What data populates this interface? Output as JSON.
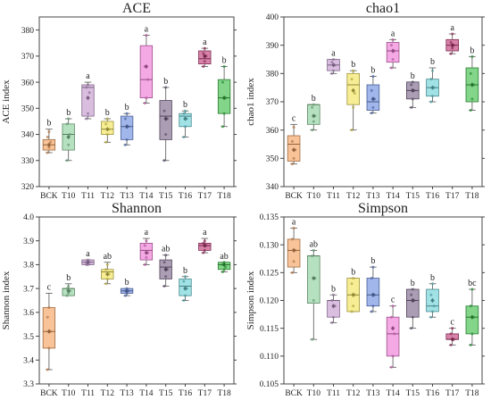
{
  "chart_data": [
    {
      "type": "box",
      "title": "ACE",
      "ylabel": "ACE index",
      "ylim": [
        320,
        385
      ],
      "yticks": [
        320,
        330,
        340,
        350,
        360,
        370,
        380
      ],
      "categories": [
        "BCK",
        "T10",
        "T11",
        "T12",
        "T13",
        "T14",
        "T15",
        "T16",
        "T17",
        "T18"
      ],
      "colors": [
        "#f4a261",
        "#8fd19e",
        "#c49bd0",
        "#f2e35a",
        "#6f8fe0",
        "#f07ad6",
        "#7e6a8c",
        "#6fd3d8",
        "#c2407a",
        "#3fbf4a"
      ],
      "boxes": [
        {
          "min": 333,
          "q1": 334,
          "median": 336,
          "mean": 336,
          "q3": 338,
          "max": 342,
          "letter": "b",
          "points": [
            333,
            335,
            337,
            339,
            341
          ]
        },
        {
          "min": 330,
          "q1": 334,
          "median": 340,
          "mean": 339,
          "q3": 344,
          "max": 346,
          "letter": "b",
          "points": [
            330,
            336,
            340,
            344,
            346
          ]
        },
        {
          "min": 346,
          "q1": 347,
          "median": 358,
          "mean": 354,
          "q3": 359,
          "max": 360,
          "letter": "a",
          "points": [
            346,
            348,
            356,
            358,
            359
          ]
        },
        {
          "min": 337,
          "q1": 340,
          "median": 342,
          "mean": 342,
          "q3": 345,
          "max": 346,
          "letter": "b",
          "points": [
            337,
            340,
            342,
            344,
            346
          ]
        },
        {
          "min": 336,
          "q1": 338,
          "median": 343,
          "mean": 343,
          "q3": 347,
          "max": 348,
          "letter": "b",
          "points": [
            336,
            338,
            343,
            346,
            348
          ]
        },
        {
          "min": 352,
          "q1": 354,
          "median": 361,
          "mean": 366,
          "q3": 374,
          "max": 378,
          "letter": "a",
          "points": [
            352,
            354,
            361,
            366,
            378
          ]
        },
        {
          "min": 330,
          "q1": 338,
          "median": 347,
          "mean": 346,
          "q3": 353,
          "max": 358,
          "letter": "b",
          "points": [
            330,
            340,
            346,
            349,
            358
          ]
        },
        {
          "min": 339,
          "q1": 343,
          "median": 347,
          "mean": 346,
          "q3": 348,
          "max": 349,
          "letter": "b",
          "points": [
            339,
            343,
            346,
            348,
            349
          ]
        },
        {
          "min": 366,
          "q1": 367,
          "median": 369,
          "mean": 370,
          "q3": 372,
          "max": 373,
          "letter": "a",
          "points": [
            366,
            368,
            370,
            371,
            373
          ]
        },
        {
          "min": 343,
          "q1": 348,
          "median": 354,
          "mean": 354,
          "q3": 361,
          "max": 366,
          "letter": "b",
          "points": [
            343,
            348,
            354,
            360,
            366
          ]
        }
      ]
    },
    {
      "type": "box",
      "title": "chao1",
      "ylabel": "chao1 index",
      "ylim": [
        340,
        400
      ],
      "yticks": [
        340,
        350,
        360,
        370,
        380,
        390,
        400
      ],
      "categories": [
        "BCK",
        "T10",
        "T11",
        "T12",
        "T13",
        "T14",
        "T15",
        "T16",
        "T17",
        "T18"
      ],
      "colors": [
        "#f4a261",
        "#8fd19e",
        "#c49bd0",
        "#f2e35a",
        "#6f8fe0",
        "#f07ad6",
        "#7e6a8c",
        "#6fd3d8",
        "#c2407a",
        "#3fbf4a"
      ],
      "boxes": [
        {
          "min": 348,
          "q1": 349,
          "median": 355,
          "mean": 353,
          "q3": 358,
          "max": 362,
          "letter": "c",
          "points": [
            348,
            350,
            353,
            356,
            361
          ]
        },
        {
          "min": 360,
          "q1": 362,
          "median": 369,
          "mean": 365,
          "q3": 369,
          "max": 369,
          "letter": "b",
          "points": [
            360,
            363,
            365,
            368,
            369
          ]
        },
        {
          "min": 380,
          "q1": 381,
          "median": 383,
          "mean": 383,
          "q3": 385,
          "max": 385,
          "letter": "a",
          "points": [
            380,
            381,
            383,
            384,
            385
          ]
        },
        {
          "min": 360,
          "q1": 369,
          "median": 376,
          "mean": 374,
          "q3": 380,
          "max": 381,
          "letter": "b",
          "points": [
            360,
            368,
            373,
            378,
            381
          ]
        },
        {
          "min": 366,
          "q1": 367,
          "median": 370,
          "mean": 371,
          "q3": 376,
          "max": 379,
          "letter": "b",
          "points": [
            366,
            368,
            371,
            374,
            379
          ]
        },
        {
          "min": 382,
          "q1": 384,
          "median": 388,
          "mean": 388,
          "q3": 391,
          "max": 392,
          "letter": "a",
          "points": [
            382,
            385,
            388,
            390,
            392
          ]
        },
        {
          "min": 368,
          "q1": 371,
          "median": 374,
          "mean": 374,
          "q3": 377,
          "max": 377,
          "letter": "b",
          "points": [
            368,
            371,
            374,
            376,
            377
          ]
        },
        {
          "min": 370,
          "q1": 372,
          "median": 375,
          "mean": 375,
          "q3": 378,
          "max": 382,
          "letter": "b",
          "points": [
            370,
            372,
            375,
            378,
            381
          ]
        },
        {
          "min": 387,
          "q1": 388,
          "median": 390,
          "mean": 390,
          "q3": 392,
          "max": 394,
          "letter": "a",
          "points": [
            387,
            389,
            390,
            391,
            394
          ]
        },
        {
          "min": 367,
          "q1": 370,
          "median": 376,
          "mean": 376,
          "q3": 382,
          "max": 386,
          "letter": "b",
          "points": [
            367,
            371,
            376,
            380,
            386
          ]
        }
      ]
    },
    {
      "type": "box",
      "title": "Shannon",
      "ylabel": "Shannon index",
      "ylim": [
        3.3,
        4.0
      ],
      "yticks": [
        3.3,
        3.4,
        3.5,
        3.6,
        3.7,
        3.8,
        3.9,
        4.0
      ],
      "categories": [
        "BCK",
        "T10",
        "T11",
        "T12",
        "T13",
        "T14",
        "T15",
        "T16",
        "T17",
        "T18"
      ],
      "colors": [
        "#f4a261",
        "#8fd19e",
        "#c49bd0",
        "#f2e35a",
        "#6f8fe0",
        "#f07ad6",
        "#7e6a8c",
        "#6fd3d8",
        "#c2407a",
        "#3fbf4a"
      ],
      "boxes": [
        {
          "min": 3.36,
          "q1": 3.45,
          "median": 3.52,
          "mean": 3.52,
          "q3": 3.62,
          "max": 3.68,
          "letter": "c",
          "points": [
            3.36,
            3.45,
            3.52,
            3.58,
            3.62
          ]
        },
        {
          "min": 3.67,
          "q1": 3.67,
          "median": 3.7,
          "mean": 3.69,
          "q3": 3.7,
          "max": 3.72,
          "letter": "b",
          "points": [
            3.67,
            3.68,
            3.69,
            3.7,
            3.71
          ]
        },
        {
          "min": 3.8,
          "q1": 3.8,
          "median": 3.81,
          "mean": 3.81,
          "q3": 3.82,
          "max": 3.82,
          "letter": "a",
          "points": [
            3.8,
            3.8,
            3.81,
            3.81,
            3.82
          ]
        },
        {
          "min": 3.72,
          "q1": 3.74,
          "median": 3.77,
          "mean": 3.76,
          "q3": 3.78,
          "max": 3.81,
          "letter": "ab",
          "points": [
            3.72,
            3.74,
            3.76,
            3.78,
            3.8
          ]
        },
        {
          "min": 3.67,
          "q1": 3.68,
          "median": 3.69,
          "mean": 3.69,
          "q3": 3.7,
          "max": 3.7,
          "letter": "b",
          "points": [
            3.67,
            3.68,
            3.69,
            3.69,
            3.7
          ]
        },
        {
          "min": 3.8,
          "q1": 3.82,
          "median": 3.86,
          "mean": 3.85,
          "q3": 3.89,
          "max": 3.91,
          "letter": "a",
          "points": [
            3.8,
            3.83,
            3.85,
            3.88,
            3.9
          ]
        },
        {
          "min": 3.71,
          "q1": 3.74,
          "median": 3.79,
          "mean": 3.78,
          "q3": 3.82,
          "max": 3.84,
          "letter": "ab",
          "points": [
            3.71,
            3.75,
            3.78,
            3.81,
            3.84
          ]
        },
        {
          "min": 3.65,
          "q1": 3.67,
          "median": 3.71,
          "mean": 3.7,
          "q3": 3.74,
          "max": 3.75,
          "letter": "b",
          "points": [
            3.65,
            3.67,
            3.7,
            3.73,
            3.75
          ]
        },
        {
          "min": 3.85,
          "q1": 3.86,
          "median": 3.88,
          "mean": 3.88,
          "q3": 3.89,
          "max": 3.91,
          "letter": "a",
          "points": [
            3.85,
            3.86,
            3.88,
            3.89,
            3.9
          ]
        },
        {
          "min": 3.77,
          "q1": 3.78,
          "median": 3.8,
          "mean": 3.8,
          "q3": 3.81,
          "max": 3.81,
          "letter": "ab",
          "points": [
            3.77,
            3.78,
            3.79,
            3.8,
            3.81
          ]
        }
      ]
    },
    {
      "type": "box",
      "title": "Simpson",
      "ylabel": "Simpson index",
      "ylim": [
        0.105,
        0.135
      ],
      "yticks": [
        0.105,
        0.11,
        0.115,
        0.12,
        0.125,
        0.13,
        0.135
      ],
      "categories": [
        "BCK",
        "T10",
        "T11",
        "T12",
        "T13",
        "T14",
        "T15",
        "T16",
        "T17",
        "T18"
      ],
      "colors": [
        "#f4a261",
        "#8fd19e",
        "#c49bd0",
        "#f2e35a",
        "#6f8fe0",
        "#f07ad6",
        "#7e6a8c",
        "#6fd3d8",
        "#c2407a",
        "#3fbf4a"
      ],
      "boxes": [
        {
          "min": 0.125,
          "q1": 0.126,
          "median": 0.129,
          "mean": 0.129,
          "q3": 0.131,
          "max": 0.133,
          "letter": "a",
          "points": [
            0.125,
            0.127,
            0.129,
            0.131,
            0.133
          ]
        },
        {
          "min": 0.113,
          "q1": 0.1195,
          "median": 0.128,
          "mean": 0.124,
          "q3": 0.128,
          "max": 0.129,
          "letter": "ab",
          "points": [
            0.113,
            0.12,
            0.124,
            0.128,
            0.129
          ]
        },
        {
          "min": 0.116,
          "q1": 0.117,
          "median": 0.12,
          "mean": 0.119,
          "q3": 0.12,
          "max": 0.121,
          "letter": "b",
          "points": [
            0.116,
            0.117,
            0.119,
            0.12,
            0.121
          ]
        },
        {
          "min": 0.118,
          "q1": 0.118,
          "median": 0.121,
          "mean": 0.121,
          "q3": 0.124,
          "max": 0.124,
          "letter": "b",
          "points": [
            0.118,
            0.119,
            0.121,
            0.123,
            0.124
          ]
        },
        {
          "min": 0.118,
          "q1": 0.119,
          "median": 0.121,
          "mean": 0.121,
          "q3": 0.124,
          "max": 0.126,
          "letter": "b",
          "points": [
            0.118,
            0.119,
            0.121,
            0.124,
            0.126
          ]
        },
        {
          "min": 0.108,
          "q1": 0.11,
          "median": 0.114,
          "mean": 0.115,
          "q3": 0.117,
          "max": 0.119,
          "letter": "c",
          "points": [
            0.108,
            0.11,
            0.114,
            0.117,
            0.119
          ]
        },
        {
          "min": 0.115,
          "q1": 0.117,
          "median": 0.12,
          "mean": 0.12,
          "q3": 0.122,
          "max": 0.122,
          "letter": "b",
          "points": [
            0.115,
            0.117,
            0.12,
            0.121,
            0.122
          ]
        },
        {
          "min": 0.117,
          "q1": 0.118,
          "median": 0.119,
          "mean": 0.12,
          "q3": 0.122,
          "max": 0.123,
          "letter": "b",
          "points": [
            0.117,
            0.118,
            0.119,
            0.121,
            0.123
          ]
        },
        {
          "min": 0.112,
          "q1": 0.113,
          "median": 0.113,
          "mean": 0.113,
          "q3": 0.114,
          "max": 0.115,
          "letter": "c",
          "points": [
            0.112,
            0.113,
            0.113,
            0.114,
            0.115
          ]
        },
        {
          "min": 0.112,
          "q1": 0.114,
          "median": 0.117,
          "mean": 0.117,
          "q3": 0.119,
          "max": 0.122,
          "letter": "bc",
          "points": [
            0.112,
            0.114,
            0.117,
            0.119,
            0.122
          ]
        }
      ]
    }
  ]
}
